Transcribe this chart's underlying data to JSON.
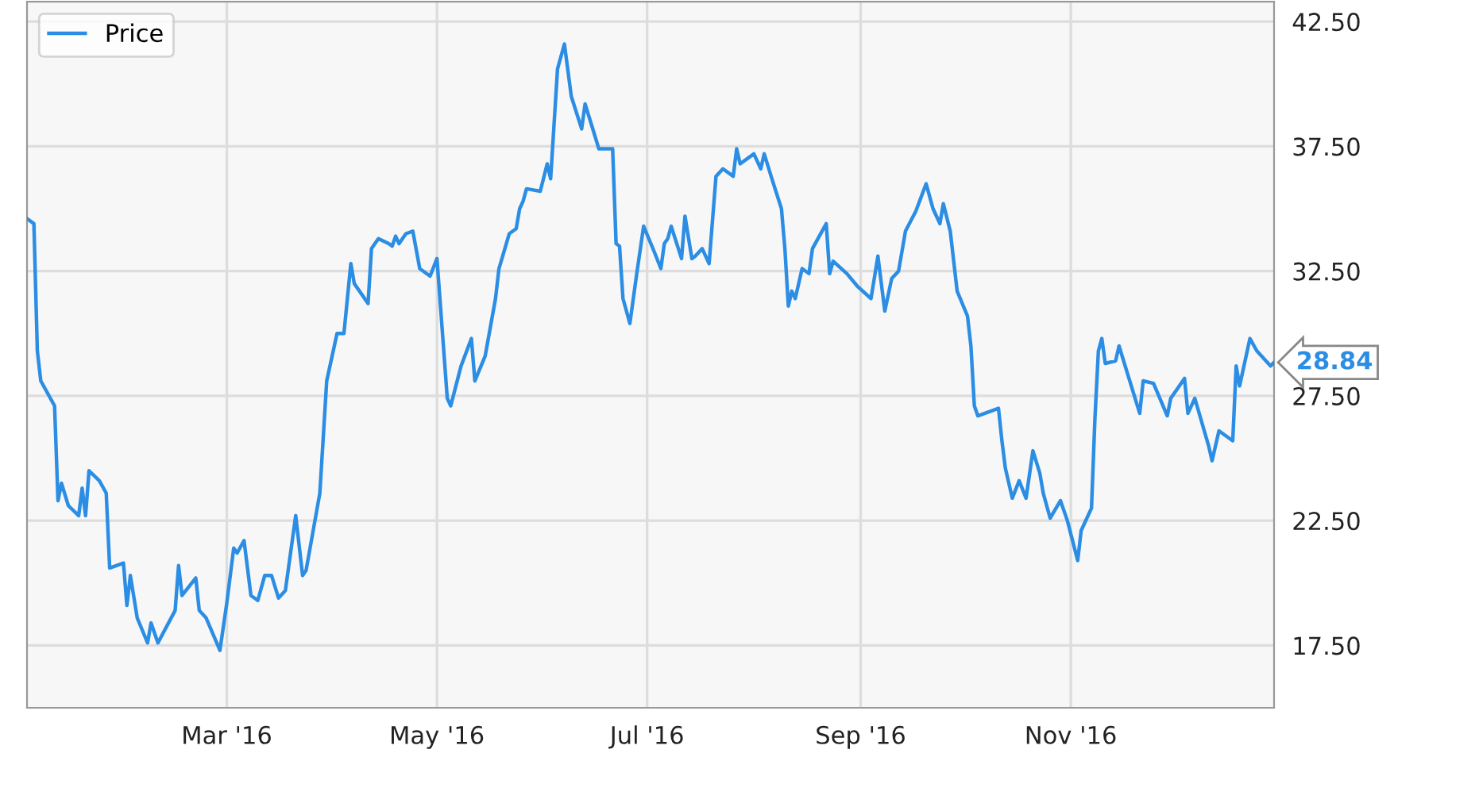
{
  "chart_data": {
    "type": "line",
    "x": [
      "2016-01-03",
      "2016-01-05",
      "2016-01-06",
      "2016-01-07",
      "2016-01-11",
      "2016-01-12",
      "2016-01-13",
      "2016-01-15",
      "2016-01-18",
      "2016-01-19",
      "2016-01-20",
      "2016-01-21",
      "2016-01-24",
      "2016-01-26",
      "2016-01-27",
      "2016-01-31",
      "2016-02-01",
      "2016-02-02",
      "2016-02-04",
      "2016-02-07",
      "2016-02-08",
      "2016-02-10",
      "2016-02-15",
      "2016-02-16",
      "2016-02-17",
      "2016-02-21",
      "2016-02-22",
      "2016-02-24",
      "2016-02-28",
      "2016-03-01",
      "2016-03-03",
      "2016-03-04",
      "2016-03-06",
      "2016-03-08",
      "2016-03-10",
      "2016-03-12",
      "2016-03-14",
      "2016-03-16",
      "2016-03-18",
      "2016-03-21",
      "2016-03-23",
      "2016-03-24",
      "2016-03-28",
      "2016-03-30",
      "2016-04-02",
      "2016-04-04",
      "2016-04-06",
      "2016-04-07",
      "2016-04-11",
      "2016-04-12",
      "2016-04-14",
      "2016-04-17",
      "2016-04-18",
      "2016-04-19",
      "2016-04-20",
      "2016-04-22",
      "2016-04-24",
      "2016-04-26",
      "2016-04-29",
      "2016-05-01",
      "2016-05-04",
      "2016-05-05",
      "2016-05-08",
      "2016-05-11",
      "2016-05-12",
      "2016-05-15",
      "2016-05-18",
      "2016-05-19",
      "2016-05-22",
      "2016-05-24",
      "2016-05-25",
      "2016-05-26",
      "2016-05-27",
      "2016-05-31",
      "2016-06-02",
      "2016-06-03",
      "2016-06-05",
      "2016-06-07",
      "2016-06-09",
      "2016-06-12",
      "2016-06-13",
      "2016-06-15",
      "2016-06-17",
      "2016-06-21",
      "2016-06-22",
      "2016-06-23",
      "2016-06-24",
      "2016-06-26",
      "2016-06-28",
      "2016-06-30",
      "2016-07-03",
      "2016-07-05",
      "2016-07-06",
      "2016-07-07",
      "2016-07-08",
      "2016-07-11",
      "2016-07-12",
      "2016-07-14",
      "2016-07-15",
      "2016-07-17",
      "2016-07-19",
      "2016-07-21",
      "2016-07-23",
      "2016-07-26",
      "2016-07-27",
      "2016-07-28",
      "2016-08-01",
      "2016-08-03",
      "2016-08-04",
      "2016-08-06",
      "2016-08-09",
      "2016-08-10",
      "2016-08-11",
      "2016-08-12",
      "2016-08-13",
      "2016-08-15",
      "2016-08-17",
      "2016-08-18",
      "2016-08-22",
      "2016-08-23",
      "2016-08-24",
      "2016-08-28",
      "2016-08-31",
      "2016-09-04",
      "2016-09-06",
      "2016-09-08",
      "2016-09-10",
      "2016-09-12",
      "2016-09-14",
      "2016-09-17",
      "2016-09-20",
      "2016-09-22",
      "2016-09-24",
      "2016-09-25",
      "2016-09-27",
      "2016-09-29",
      "2016-10-02",
      "2016-10-03",
      "2016-10-04",
      "2016-10-05",
      "2016-10-11",
      "2016-10-12",
      "2016-10-13",
      "2016-10-15",
      "2016-10-17",
      "2016-10-19",
      "2016-10-21",
      "2016-10-23",
      "2016-10-24",
      "2016-10-26",
      "2016-10-29",
      "2016-10-31",
      "2016-11-03",
      "2016-11-04",
      "2016-11-07",
      "2016-11-08",
      "2016-11-09",
      "2016-11-10",
      "2016-11-11",
      "2016-11-14",
      "2016-11-15",
      "2016-11-17",
      "2016-11-21",
      "2016-11-22",
      "2016-11-25",
      "2016-11-29",
      "2016-11-30",
      "2016-12-04",
      "2016-12-05",
      "2016-12-07",
      "2016-12-11",
      "2016-12-12",
      "2016-12-14",
      "2016-12-18",
      "2016-12-19",
      "2016-12-20",
      "2016-12-23",
      "2016-12-25",
      "2016-12-29",
      "2016-12-30"
    ],
    "series": [
      {
        "name": "Price",
        "color": "#2b8de3",
        "values": [
          34.6,
          34.4,
          29.3,
          28.1,
          27.1,
          23.3,
          24.0,
          23.1,
          22.7,
          23.8,
          22.7,
          24.5,
          24.1,
          23.6,
          20.6,
          20.8,
          19.1,
          20.3,
          18.6,
          17.6,
          18.4,
          17.6,
          18.9,
          20.7,
          19.5,
          20.2,
          18.9,
          18.6,
          17.3,
          19.2,
          21.4,
          21.2,
          21.7,
          19.5,
          19.3,
          20.3,
          20.3,
          19.4,
          19.7,
          22.7,
          20.3,
          20.5,
          23.6,
          28.1,
          30.0,
          30.0,
          32.8,
          32.0,
          31.2,
          33.4,
          33.8,
          33.6,
          33.5,
          33.9,
          33.6,
          34.0,
          34.1,
          32.6,
          32.3,
          33.0,
          27.4,
          27.1,
          28.7,
          29.8,
          28.1,
          29.1,
          31.4,
          32.6,
          34.0,
          34.2,
          35.0,
          35.3,
          35.8,
          35.7,
          36.8,
          36.2,
          40.6,
          41.6,
          39.5,
          38.2,
          39.2,
          38.3,
          37.4,
          37.4,
          33.6,
          33.5,
          31.4,
          30.4,
          32.4,
          34.3,
          33.3,
          32.6,
          33.6,
          33.8,
          34.3,
          33.0,
          34.7,
          33.0,
          33.1,
          33.4,
          32.8,
          36.3,
          36.6,
          36.3,
          37.4,
          36.8,
          37.2,
          36.6,
          37.2,
          36.3,
          35.0,
          33.4,
          31.1,
          31.7,
          31.4,
          32.6,
          32.4,
          33.4,
          34.4,
          32.4,
          32.9,
          32.4,
          31.9,
          31.4,
          33.1,
          30.9,
          32.2,
          32.5,
          34.1,
          34.9,
          36.0,
          35.0,
          34.4,
          35.2,
          34.1,
          31.7,
          30.7,
          29.5,
          27.1,
          26.7,
          27.0,
          25.7,
          24.6,
          23.4,
          24.1,
          23.4,
          25.3,
          24.4,
          23.6,
          22.6,
          23.3,
          22.5,
          20.9,
          22.1,
          23.0,
          26.6,
          29.3,
          29.8,
          28.8,
          28.9,
          29.5,
          28.6,
          26.8,
          28.1,
          28.0,
          26.7,
          27.4,
          28.2,
          26.8,
          27.4,
          25.5,
          24.9,
          26.1,
          25.7,
          28.7,
          27.9,
          29.8,
          29.3,
          28.7,
          28.84
        ]
      }
    ],
    "xlim": [
      "2016-01-03",
      "2016-12-30"
    ],
    "xticks": [
      {
        "value": "2016-03-01",
        "label": "Mar '16"
      },
      {
        "value": "2016-05-01",
        "label": "May '16"
      },
      {
        "value": "2016-07-01",
        "label": "Jul '16"
      },
      {
        "value": "2016-09-01",
        "label": "Sep '16"
      },
      {
        "value": "2016-11-01",
        "label": "Nov '16"
      }
    ],
    "ylim": [
      15,
      43.3
    ],
    "yticks": [
      {
        "value": 17.5,
        "label": "17.50"
      },
      {
        "value": 22.5,
        "label": "22.50"
      },
      {
        "value": 27.5,
        "label": "27.50"
      },
      {
        "value": 32.5,
        "label": "32.50"
      },
      {
        "value": 37.5,
        "label": "37.50"
      },
      {
        "value": 42.5,
        "label": "42.50"
      }
    ],
    "annotations": [
      {
        "text": "28.84",
        "x": "2016-12-30",
        "y": 28.84
      }
    ],
    "grid": true,
    "legend": "top left",
    "marker": "none",
    "line_style": "solid"
  }
}
